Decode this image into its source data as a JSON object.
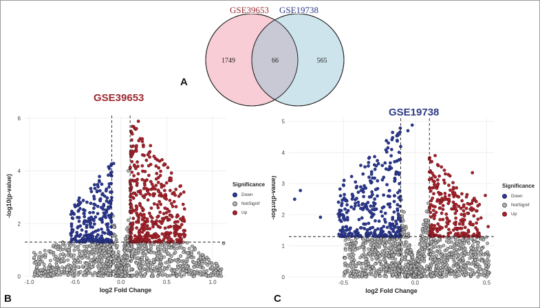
{
  "panels": {
    "a": "A",
    "b": "B",
    "c": "C"
  },
  "venn": {
    "left_label": "GSE39653",
    "right_label": "GSE19738",
    "left_only": "1749",
    "overlap": "66",
    "right_only": "565",
    "colors": {
      "left_fill": "#f8cdd6",
      "right_fill": "#cde4ec",
      "overlap_fill": "#c9c9d6",
      "left_label": "#9b2a30",
      "right_label": "#2d3a84"
    }
  },
  "legend": {
    "title": "Significance",
    "items": [
      "Down",
      "NotSignif",
      "Up"
    ]
  },
  "colors": {
    "down": "#2c3a94",
    "notsignif": "#9a9a9a",
    "up": "#a8232c",
    "title_b": "#9b2a30",
    "title_c": "#2d3a84"
  },
  "chart_data": [
    {
      "type": "scatter",
      "title": "GSE39653",
      "xlabel": "log2 Fold Change",
      "ylabel": "-log10(p-value)",
      "xlim": [
        -1.05,
        1.15
      ],
      "ylim": [
        0,
        6.1
      ],
      "xticks": [
        -1.0,
        -0.5,
        0.0,
        0.5,
        1.0
      ],
      "xtick_labels": [
        "-1.0",
        "-0.5",
        "0.0",
        "0.5",
        "1.0"
      ],
      "yticks": [
        0,
        2,
        4,
        6
      ],
      "ytick_labels": [
        "0",
        "2",
        "4",
        "6"
      ],
      "fc_cutoff": [
        -0.1,
        0.1
      ],
      "p_cutoff": 1.3,
      "seed": 17,
      "groups": [
        {
          "name": "Down",
          "count": 260,
          "x_range": [
            -0.55,
            -0.1
          ],
          "y_range": [
            1.3,
            4.3
          ]
        },
        {
          "name": "NotSignif",
          "count": 1100,
          "x_range": [
            -0.95,
            1.1
          ],
          "y_range": [
            0,
            3.6
          ]
        },
        {
          "name": "Up",
          "count": 420,
          "x_range": [
            0.1,
            0.7
          ],
          "y_range": [
            1.3,
            5.9
          ]
        }
      ],
      "points": [
        {
          "x": 0.19,
          "y": 5.88,
          "group": "Up"
        },
        {
          "x": -0.08,
          "y": 4.28,
          "group": "Down"
        },
        {
          "x": 0.08,
          "y": 4.0,
          "group": "NotSignif"
        },
        {
          "x": 0.39,
          "y": 3.9,
          "group": "Up"
        },
        {
          "x": 0.62,
          "y": 1.8,
          "group": "Up"
        },
        {
          "x": -0.5,
          "y": 1.45,
          "group": "Down"
        },
        {
          "x": -0.44,
          "y": 1.58,
          "group": "Down"
        },
        {
          "x": -0.93,
          "y": 0.82,
          "group": "NotSignif"
        },
        {
          "x": -0.95,
          "y": 0.9,
          "group": "NotSignif"
        },
        {
          "x": 1.12,
          "y": 1.25,
          "group": "NotSignif"
        },
        {
          "x": -0.57,
          "y": 1.0,
          "group": "NotSignif"
        }
      ]
    },
    {
      "type": "scatter",
      "title": "GSE19738",
      "xlabel": "log2 Fold Change",
      "ylabel": "-log10(p-value)",
      "xlim": [
        -0.88,
        0.55
      ],
      "ylim": [
        0,
        5.1
      ],
      "xticks": [
        -0.5,
        0.0,
        0.5
      ],
      "xtick_labels": [
        "-0.5",
        "0.0",
        "0.5"
      ],
      "yticks": [
        0,
        1,
        2,
        3,
        4,
        5
      ],
      "ytick_labels": [
        "0",
        "1",
        "2",
        "3",
        "4",
        "5"
      ],
      "fc_cutoff": [
        -0.1,
        0.1
      ],
      "p_cutoff": 1.3,
      "seed": 29,
      "groups": [
        {
          "name": "Down",
          "count": 330,
          "x_range": [
            -0.55,
            -0.1
          ],
          "y_range": [
            1.3,
            4.9
          ]
        },
        {
          "name": "NotSignif",
          "count": 1200,
          "x_range": [
            -0.5,
            0.52
          ],
          "y_range": [
            0,
            3.4
          ]
        },
        {
          "name": "Up",
          "count": 240,
          "x_range": [
            0.1,
            0.45
          ],
          "y_range": [
            1.3,
            3.9
          ]
        }
      ],
      "points": [
        {
          "x": -0.02,
          "y": 4.88,
          "group": "Down"
        },
        {
          "x": -0.05,
          "y": 4.7,
          "group": "Down"
        },
        {
          "x": -0.8,
          "y": 2.78,
          "group": "Down"
        },
        {
          "x": -0.84,
          "y": 2.5,
          "group": "Down"
        },
        {
          "x": -0.66,
          "y": 1.92,
          "group": "Down"
        },
        {
          "x": 0.14,
          "y": 3.9,
          "group": "Up"
        },
        {
          "x": 0.4,
          "y": 3.35,
          "group": "Up"
        },
        {
          "x": 0.49,
          "y": 2.62,
          "group": "Up"
        },
        {
          "x": 0.46,
          "y": 1.9,
          "group": "Up"
        },
        {
          "x": 0.51,
          "y": 1.62,
          "group": "Up"
        },
        {
          "x": 0.42,
          "y": 0.55,
          "group": "NotSignif"
        },
        {
          "x": -0.48,
          "y": 1.05,
          "group": "NotSignif"
        }
      ]
    }
  ]
}
